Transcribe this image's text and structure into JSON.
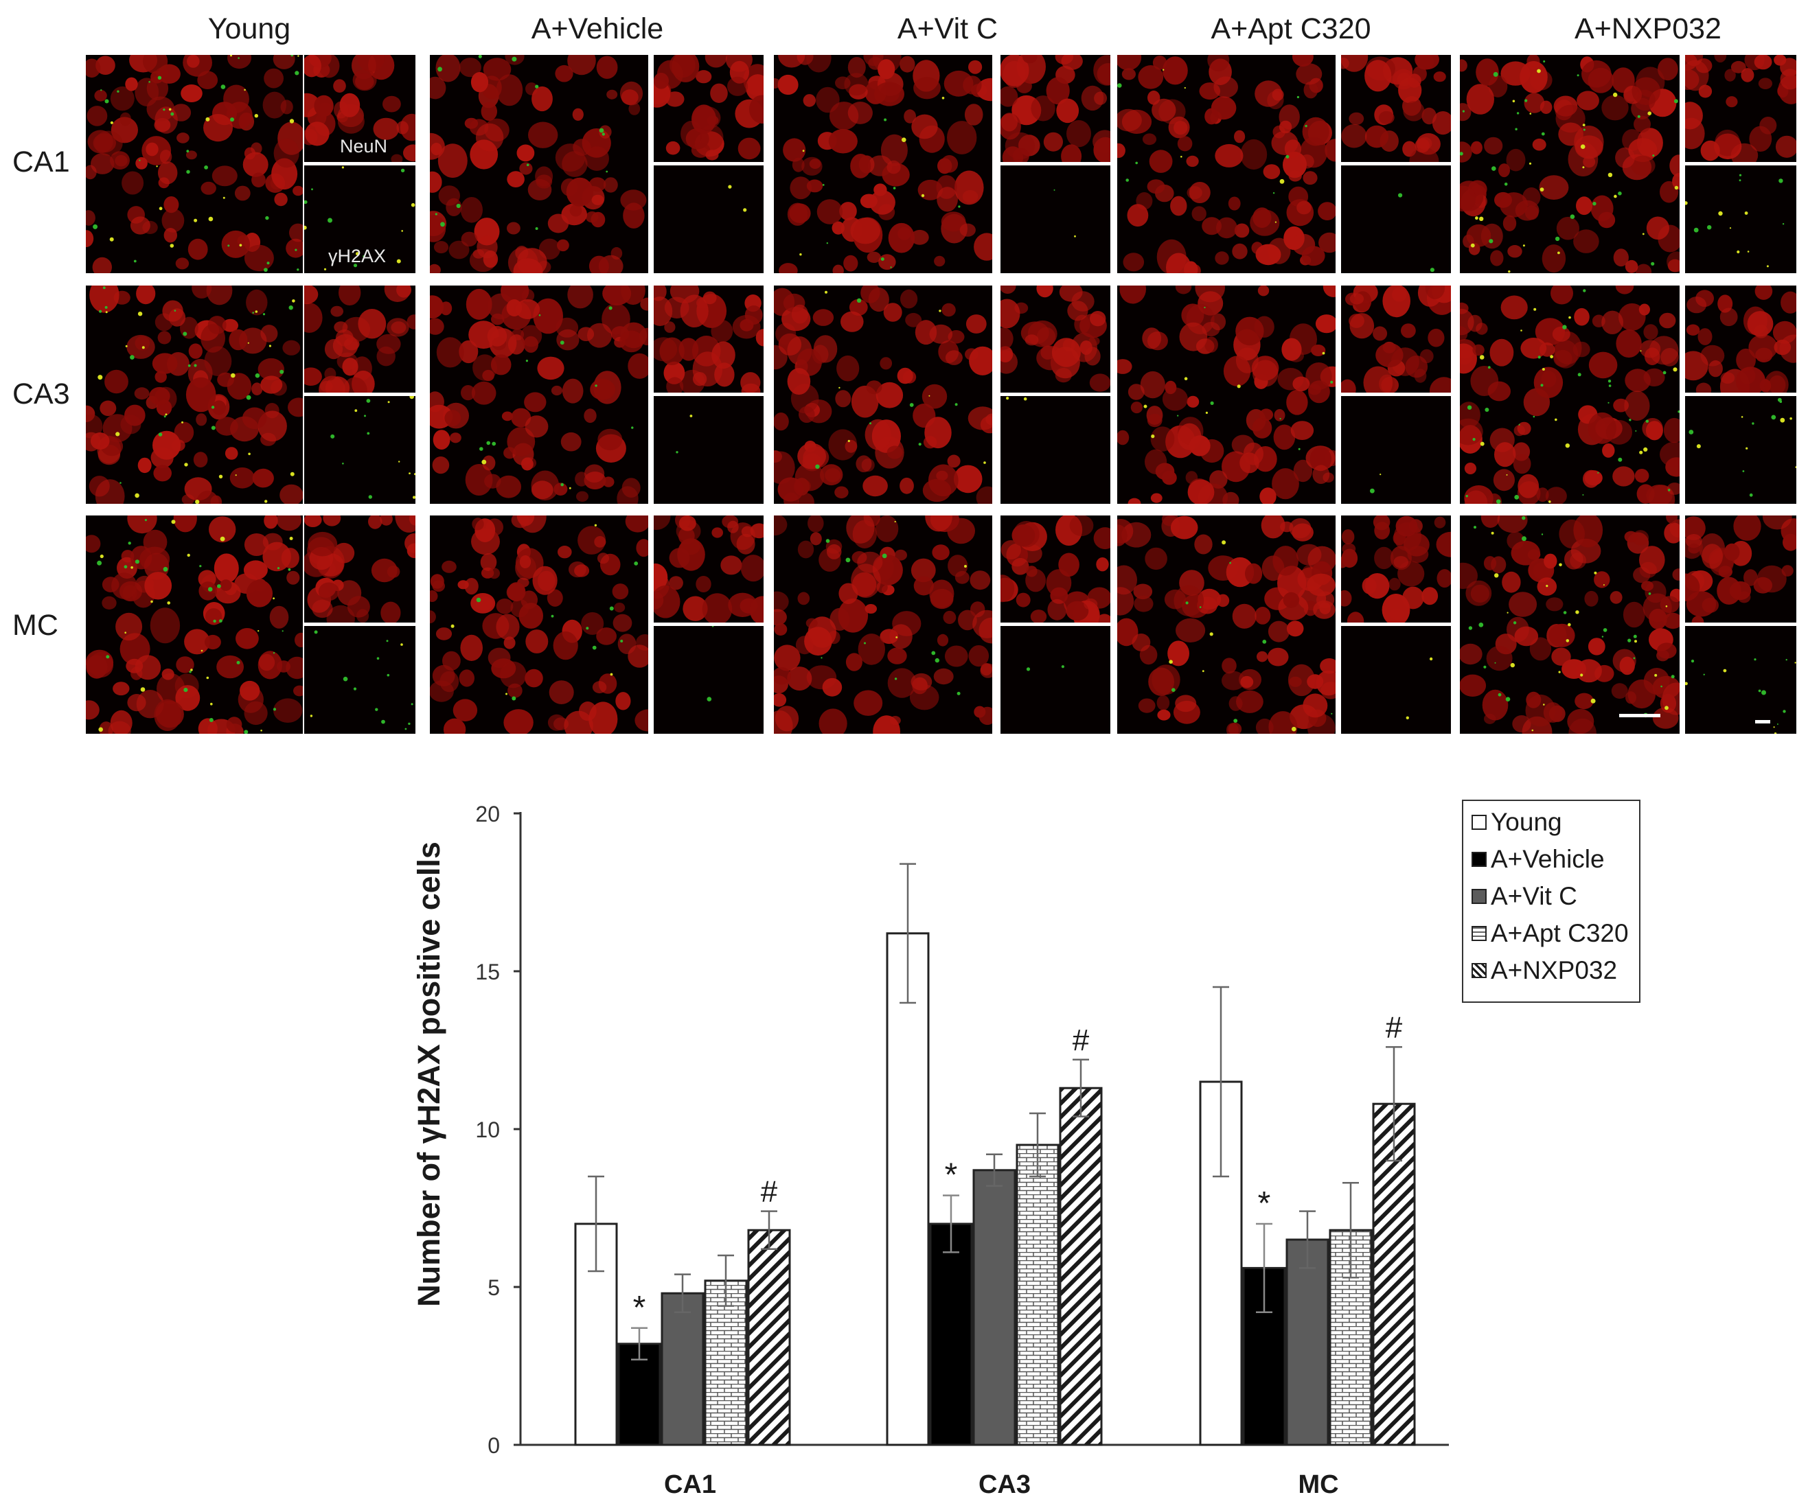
{
  "figure": {
    "columns": [
      "Young",
      "A+Vehicle",
      "A+Vit C",
      "A+Apt C320",
      "A+NXP032"
    ],
    "rows": [
      "CA1",
      "CA3",
      "MC"
    ],
    "inset_labels": {
      "top": "NeuN",
      "bottom": "γH2AX"
    }
  },
  "chart_data": {
    "type": "bar",
    "ylabel": "Number of γH2AX positive cells",
    "ylim": [
      0,
      20
    ],
    "yticks": [
      0,
      5,
      10,
      15,
      20
    ],
    "categories": [
      "CA1",
      "CA3",
      "MC"
    ],
    "series": [
      {
        "name": "Young",
        "values": [
          7.0,
          16.2,
          11.5
        ],
        "errors": [
          1.5,
          2.2,
          3.0
        ],
        "marks": [
          "",
          "",
          ""
        ],
        "fill": "white"
      },
      {
        "name": "A+Vehicle",
        "values": [
          3.2,
          7.0,
          5.6
        ],
        "errors": [
          0.5,
          0.9,
          1.4
        ],
        "marks": [
          "*",
          "*",
          "*"
        ],
        "fill": "black"
      },
      {
        "name": "A+Vit C",
        "values": [
          4.8,
          8.7,
          6.5
        ],
        "errors": [
          0.6,
          0.5,
          0.9
        ],
        "marks": [
          "",
          "",
          ""
        ],
        "fill": "gray"
      },
      {
        "name": "A+Apt C320",
        "values": [
          5.2,
          9.5,
          6.8
        ],
        "errors": [
          0.8,
          1.0,
          1.5
        ],
        "marks": [
          "",
          "",
          ""
        ],
        "fill": "brick"
      },
      {
        "name": "A+NXP032",
        "values": [
          6.8,
          11.3,
          10.8
        ],
        "errors": [
          0.6,
          0.9,
          1.8
        ],
        "marks": [
          "#",
          "#",
          "#"
        ],
        "fill": "diagonal"
      }
    ],
    "legend": "top-right",
    "grid": false
  }
}
